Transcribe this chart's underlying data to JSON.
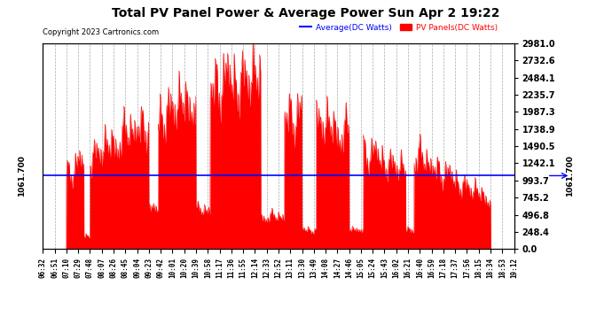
{
  "title": "Total PV Panel Power & Average Power Sun Apr 2 19:22",
  "copyright": "Copyright 2023 Cartronics.com",
  "legend_avg": "Average(DC Watts)",
  "legend_pv": "PV Panels(DC Watts)",
  "avg_value": 1061.7,
  "avg_label": "1061.700",
  "y_ticks": [
    0.0,
    248.4,
    496.8,
    745.2,
    993.7,
    1242.1,
    1490.5,
    1738.9,
    1987.3,
    2235.7,
    2484.1,
    2732.6,
    2981.0
  ],
  "ymax": 2981.0,
  "ymin": 0.0,
  "bg_color": "#ffffff",
  "fill_color": "#ff0000",
  "line_color": "#0000ff",
  "grid_color": "#aaaaaa",
  "title_color": "#000000",
  "x_labels": [
    "06:32",
    "06:51",
    "07:10",
    "07:29",
    "07:48",
    "08:07",
    "08:26",
    "08:45",
    "09:04",
    "09:23",
    "09:42",
    "10:01",
    "10:20",
    "10:39",
    "10:58",
    "11:17",
    "11:36",
    "11:55",
    "12:14",
    "12:33",
    "12:52",
    "13:11",
    "13:30",
    "13:49",
    "14:08",
    "14:27",
    "14:46",
    "15:05",
    "15:24",
    "15:43",
    "16:02",
    "16:21",
    "16:40",
    "16:59",
    "17:18",
    "17:37",
    "17:56",
    "18:15",
    "18:34",
    "18:53",
    "19:12"
  ]
}
